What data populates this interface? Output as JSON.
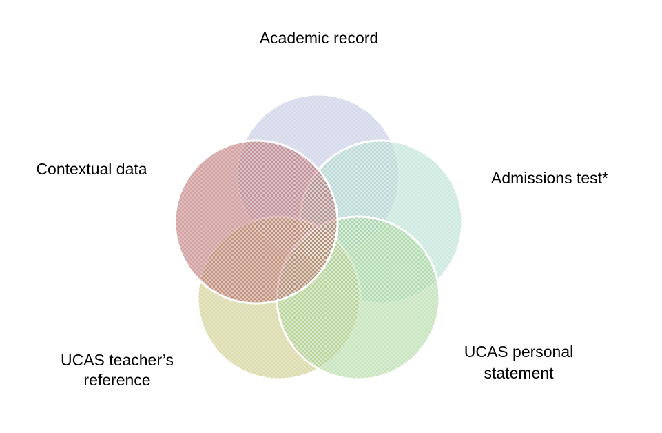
{
  "nodes": [
    {
      "label_lines": [
        "Academic record"
      ]
    },
    {
      "label_lines": [
        "Admissions test*"
      ]
    },
    {
      "label_lines": [
        "UCAS personal",
        "statement"
      ]
    },
    {
      "label_lines": [
        "UCAS teacher’s",
        "reference"
      ]
    },
    {
      "label_lines": [
        "Contextual data"
      ]
    }
  ]
}
